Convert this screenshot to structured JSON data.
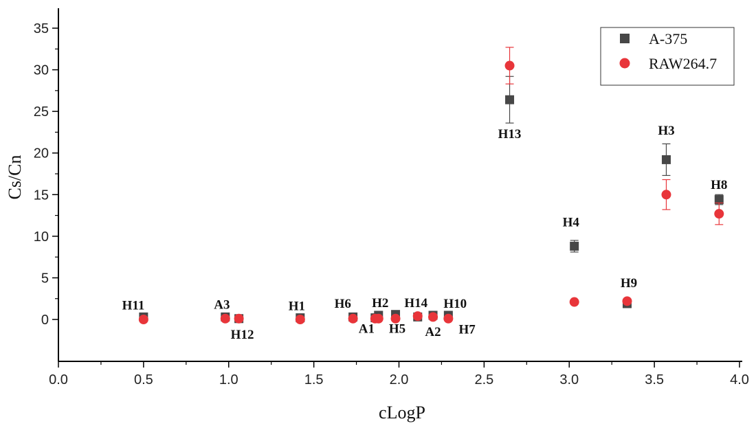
{
  "chart_data": {
    "type": "scatter",
    "xlabel": "cLogP",
    "ylabel": "Cs/Cn",
    "xlim": [
      0.0,
      4.0
    ],
    "ylim": [
      -5,
      37
    ],
    "x_ticks": [
      "0.0",
      "0.5",
      "1.0",
      "1.5",
      "2.0",
      "2.5",
      "3.0",
      "3.5",
      "4.0"
    ],
    "y_ticks": [
      "0",
      "5",
      "10",
      "15",
      "20",
      "25",
      "30",
      "35"
    ],
    "x_tick_values": [
      0.0,
      0.5,
      1.0,
      1.5,
      2.0,
      2.5,
      3.0,
      3.5,
      4.0
    ],
    "y_tick_values": [
      0,
      5,
      10,
      15,
      20,
      25,
      30,
      35
    ],
    "grid": false,
    "legend_position": "top-right",
    "series": [
      {
        "name": "A-375",
        "marker": "square",
        "color": "#474747",
        "points": [
          {
            "x": 0.5,
            "y": 0.3,
            "err": 0
          },
          {
            "x": 0.98,
            "y": 0.3,
            "err": 0.3
          },
          {
            "x": 1.06,
            "y": 0.1,
            "err": 0
          },
          {
            "x": 1.42,
            "y": 0.2,
            "err": 0
          },
          {
            "x": 1.73,
            "y": 0.3,
            "err": 0
          },
          {
            "x": 1.86,
            "y": 0.2,
            "err": 0
          },
          {
            "x": 1.88,
            "y": 0.5,
            "err": 0
          },
          {
            "x": 1.98,
            "y": 0.6,
            "err": 0
          },
          {
            "x": 2.11,
            "y": 0.3,
            "err": 0
          },
          {
            "x": 2.2,
            "y": 0.5,
            "err": 0
          },
          {
            "x": 2.29,
            "y": 0.5,
            "err": 0
          },
          {
            "x": 2.65,
            "y": 26.4,
            "err": 2.8
          },
          {
            "x": 3.03,
            "y": 8.8,
            "err": 0.7
          },
          {
            "x": 3.34,
            "y": 1.9,
            "err": 0
          },
          {
            "x": 3.57,
            "y": 19.2,
            "err": 1.9
          },
          {
            "x": 3.88,
            "y": 14.4,
            "err": 0.6
          }
        ]
      },
      {
        "name": "RAW264.7",
        "marker": "circle",
        "color": "#e8353a",
        "points": [
          {
            "x": 0.5,
            "y": 0.0,
            "err": 0
          },
          {
            "x": 0.98,
            "y": 0.1,
            "err": 0
          },
          {
            "x": 1.06,
            "y": 0.1,
            "err": 0
          },
          {
            "x": 1.42,
            "y": 0.0,
            "err": 0
          },
          {
            "x": 1.73,
            "y": 0.1,
            "err": 0
          },
          {
            "x": 1.86,
            "y": 0.1,
            "err": 0
          },
          {
            "x": 1.88,
            "y": 0.1,
            "err": 0
          },
          {
            "x": 1.98,
            "y": 0.1,
            "err": 0
          },
          {
            "x": 2.11,
            "y": 0.4,
            "err": 0
          },
          {
            "x": 2.2,
            "y": 0.3,
            "err": 0
          },
          {
            "x": 2.29,
            "y": 0.1,
            "err": 0
          },
          {
            "x": 2.65,
            "y": 30.5,
            "err": 2.2
          },
          {
            "x": 3.03,
            "y": 2.1,
            "err": 0
          },
          {
            "x": 3.34,
            "y": 2.2,
            "err": 0
          },
          {
            "x": 3.57,
            "y": 15.0,
            "err": 1.8
          },
          {
            "x": 3.88,
            "y": 12.7,
            "err": 1.3
          }
        ]
      }
    ],
    "annotations": [
      {
        "text": "H11",
        "x": 0.44,
        "y": 1.2
      },
      {
        "text": "A3",
        "x": 0.96,
        "y": 1.3
      },
      {
        "text": "H12",
        "x": 1.08,
        "y": -2.3
      },
      {
        "text": "H1",
        "x": 1.4,
        "y": 1.1
      },
      {
        "text": "H6",
        "x": 1.67,
        "y": 1.4
      },
      {
        "text": "H2",
        "x": 1.89,
        "y": 1.5
      },
      {
        "text": "A1",
        "x": 1.81,
        "y": -1.6
      },
      {
        "text": "H5",
        "x": 1.99,
        "y": -1.6
      },
      {
        "text": "H14",
        "x": 2.1,
        "y": 1.5
      },
      {
        "text": "H10",
        "x": 2.33,
        "y": 1.4
      },
      {
        "text": "A2",
        "x": 2.2,
        "y": -2.0
      },
      {
        "text": "H7",
        "x": 2.4,
        "y": -1.7
      },
      {
        "text": "H13",
        "x": 2.65,
        "y": 21.8
      },
      {
        "text": "H4",
        "x": 3.01,
        "y": 11.2
      },
      {
        "text": "H9",
        "x": 3.35,
        "y": 3.9
      },
      {
        "text": "H3",
        "x": 3.57,
        "y": 22.2
      },
      {
        "text": "H8",
        "x": 3.88,
        "y": 15.7
      }
    ]
  }
}
